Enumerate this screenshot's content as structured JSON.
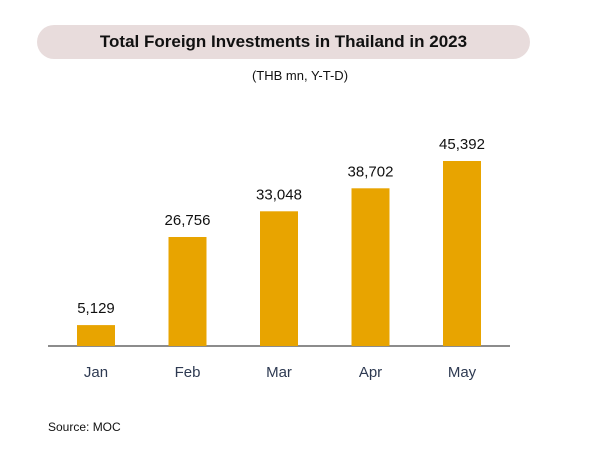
{
  "chart_data": {
    "type": "bar",
    "title": "Total Foreign Investments in Thailand in 2023",
    "subtitle": "(THB mn, Y-T-D)",
    "categories": [
      "Jan",
      "Feb",
      "Mar",
      "Apr",
      "May"
    ],
    "values": [
      5129,
      26756,
      33048,
      38702,
      45392
    ],
    "value_labels": [
      "5,129",
      "26,756",
      "33,048",
      "38,702",
      "45,392"
    ],
    "xlabel": "",
    "ylabel": "",
    "ylim": [
      0,
      45392
    ],
    "grid": false,
    "legend": "none",
    "bar_color": "#e8a400",
    "source": "Source: MOC"
  }
}
